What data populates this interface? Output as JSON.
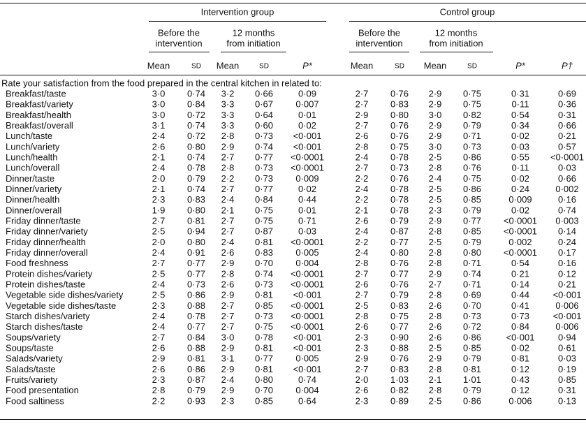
{
  "header": {
    "groups": [
      "Intervention group",
      "Control group"
    ],
    "periods": [
      [
        "Before the",
        "intervention"
      ],
      [
        "12 months",
        "from initiation"
      ],
      [
        "Before the",
        "intervention"
      ],
      [
        "12 months",
        "from initiation"
      ]
    ],
    "columns": [
      "Mean",
      "SD",
      "Mean",
      "SD",
      "P*",
      "Mean",
      "SD",
      "Mean",
      "SD",
      "P*",
      "P†"
    ]
  },
  "section": "Rate your satisfaction from the food prepared in the central kitchen in related to:",
  "rows": [
    [
      "Breakfast/taste",
      "3·0",
      "0·74",
      "3·2",
      "0·66",
      "0·09",
      "2·7",
      "0·76",
      "2·9",
      "0·75",
      "0·31",
      "0·69"
    ],
    [
      "Breakfast/variety",
      "3·0",
      "0·84",
      "3·3",
      "0·67",
      "0·007",
      "2·7",
      "0·83",
      "2·9",
      "0·75",
      "0·11",
      "0·36"
    ],
    [
      "Breakfast/health",
      "3·0",
      "0·72",
      "3·3",
      "0·64",
      "0·01",
      "2·9",
      "0·80",
      "3·0",
      "0·82",
      "0·54",
      "0·31"
    ],
    [
      "Breakfast/overall",
      "3·1",
      "0·74",
      "3·3",
      "0·60",
      "0·02",
      "2·7",
      "0·76",
      "2·9",
      "0·79",
      "0·34",
      "0·66"
    ],
    [
      "Lunch/taste",
      "2·4",
      "0·72",
      "2·8",
      "0·73",
      "<0·001",
      "2·6",
      "0·76",
      "2·9",
      "0·71",
      "0·02",
      "0·21"
    ],
    [
      "Lunch/variety",
      "2·6",
      "0·80",
      "2·9",
      "0·74",
      "<0·001",
      "2·8",
      "0·75",
      "3·0",
      "0·73",
      "0·03",
      "0·57"
    ],
    [
      "Lunch/health",
      "2·1",
      "0·74",
      "2·7",
      "0·77",
      "<0·0001",
      "2·4",
      "0·78",
      "2·5",
      "0·86",
      "0·55",
      "<0·0001"
    ],
    [
      "Lunch/overall",
      "2·4",
      "0·78",
      "2·8",
      "0·73",
      "<0·0001",
      "2·7",
      "0·73",
      "2·8",
      "0·76",
      "0·11",
      "0·03"
    ],
    [
      "Dinner/taste",
      "2·0",
      "0·79",
      "2·2",
      "0·73",
      "0·009",
      "2·2",
      "0·76",
      "2·4",
      "0·75",
      "0·02",
      "0·66"
    ],
    [
      "Dinner/variety",
      "2·1",
      "0·74",
      "2·7",
      "0·77",
      "0·02",
      "2·4",
      "0·78",
      "2·5",
      "0·86",
      "0·24",
      "0·002"
    ],
    [
      "Dinner/health",
      "2·3",
      "0·83",
      "2·4",
      "0·84",
      "0·44",
      "2·2",
      "0·78",
      "2·5",
      "0·85",
      "0·009",
      "0·16"
    ],
    [
      "Dinner/overall",
      "1·9",
      "0·80",
      "2·1",
      "0·75",
      "0·01",
      "2·1",
      "0·78",
      "2·3",
      "0·79",
      "0·02",
      "0·74"
    ],
    [
      "Friday dinner/taste",
      "2·7",
      "0·81",
      "2·7",
      "0·75",
      "0·71",
      "2·6",
      "0·79",
      "2·9",
      "0·77",
      "<0·0001",
      "0·003"
    ],
    [
      "Friday dinner/variety",
      "2·5",
      "0·94",
      "2·7",
      "0·87",
      "0·03",
      "2·4",
      "0·87",
      "2·8",
      "0·85",
      "<0·0001",
      "0·14"
    ],
    [
      "Friday dinner/health",
      "2·0",
      "0·80",
      "2·4",
      "0·81",
      "<0·0001",
      "2·2",
      "0·77",
      "2·5",
      "0·79",
      "0·002",
      "0·24"
    ],
    [
      "Friday dinner/overall",
      "2·4",
      "0·91",
      "2·6",
      "0·83",
      "0·005",
      "2·4",
      "0·80",
      "2·8",
      "0·80",
      "<0·0001",
      "0·17"
    ],
    [
      "Food freshness",
      "2·7",
      "0·77",
      "2·9",
      "0·70",
      "0·004",
      "2·8",
      "0·76",
      "2·8",
      "0·71",
      "0·54",
      "0·16"
    ],
    [
      "Protein dishes/variety",
      "2·5",
      "0·77",
      "2·8",
      "0·74",
      "<0·0001",
      "2·7",
      "0·77",
      "2·9",
      "0·74",
      "0·21",
      "0·12"
    ],
    [
      "Protein dishes/taste",
      "2·4",
      "0·73",
      "2·6",
      "0·73",
      "<0·0001",
      "2·6",
      "0·76",
      "2·7",
      "0·71",
      "0·14",
      "0·21"
    ],
    [
      "Vegetable side dishes/variety",
      "2·5",
      "0·86",
      "2·9",
      "0·81",
      "<0·001",
      "2·7",
      "0·79",
      "2·8",
      "0·69",
      "0·44",
      "<0·001"
    ],
    [
      "Vegetable side dishes/taste",
      "2·3",
      "0·88",
      "2·7",
      "0·85",
      "<0·0001",
      "2·5",
      "0·83",
      "2·6",
      "0·70",
      "0·41",
      "0·006"
    ],
    [
      "Starch dishes/variety",
      "2·4",
      "0·78",
      "2·7",
      "0·73",
      "<0·0001",
      "2·8",
      "0·75",
      "2·8",
      "0·73",
      "0·73",
      "<0·001"
    ],
    [
      "Starch dishes/taste",
      "2·4",
      "0·77",
      "2·7",
      "0·75",
      "<0·0001",
      "2·6",
      "0·77",
      "2·6",
      "0·72",
      "0·84",
      "0·006"
    ],
    [
      "Soups/variety",
      "2·7",
      "0·84",
      "3·0",
      "0·78",
      "<0·001",
      "2·3",
      "0·90",
      "2·6",
      "0·86",
      "<0·001",
      "0·94"
    ],
    [
      "Soups/taste",
      "2·6",
      "0·88",
      "2·9",
      "0·81",
      "<0·001",
      "2·3",
      "0·88",
      "2·5",
      "0·85",
      "0·02",
      "0·61"
    ],
    [
      "Salads/variety",
      "2·9",
      "0·81",
      "3·1",
      "0·77",
      "0·005",
      "2·9",
      "0·76",
      "2·9",
      "0·79",
      "0·81",
      "0·03"
    ],
    [
      "Salads/taste",
      "2·6",
      "0·86",
      "2·9",
      "0·81",
      "<0·001",
      "2·7",
      "0·83",
      "2·8",
      "0·81",
      "0·12",
      "0·19"
    ],
    [
      "Fruits/variety",
      "2·3",
      "0·87",
      "2·4",
      "0·80",
      "0·74",
      "2·0",
      "1·03",
      "2·1",
      "1·01",
      "0·43",
      "0·85"
    ],
    [
      "Food presentation",
      "2·8",
      "0·79",
      "2·9",
      "0·70",
      "0·004",
      "2·6",
      "0·82",
      "2·8",
      "0·79",
      "0·12",
      "0·31"
    ],
    [
      "Food saltiness",
      "2·2",
      "0·93",
      "2·3",
      "0·85",
      "0·64",
      "2·3",
      "0·89",
      "2·5",
      "0·86",
      "0·006",
      "0·13"
    ]
  ]
}
